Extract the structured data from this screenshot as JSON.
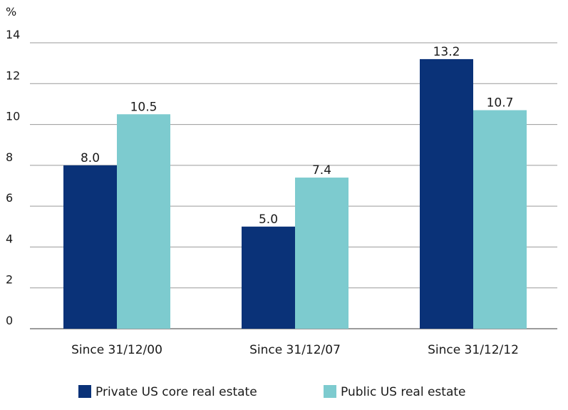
{
  "chart_data": {
    "type": "bar",
    "categories": [
      "Since 31/12/00",
      "Since 31/12/07",
      "Since 31/12/12"
    ],
    "series": [
      {
        "name": "Private US core real estate",
        "values": [
          8.0,
          5.0,
          13.2
        ],
        "color": "#0a3278"
      },
      {
        "name": "Public US real estate",
        "values": [
          10.5,
          7.4,
          10.7
        ],
        "color": "#7dcbcf"
      }
    ],
    "y_unit": "%",
    "ylim": [
      0,
      14
    ],
    "yticks": [
      0,
      2,
      4,
      6,
      8,
      10,
      12,
      14
    ],
    "grid": true,
    "legend": "bottom-center"
  }
}
